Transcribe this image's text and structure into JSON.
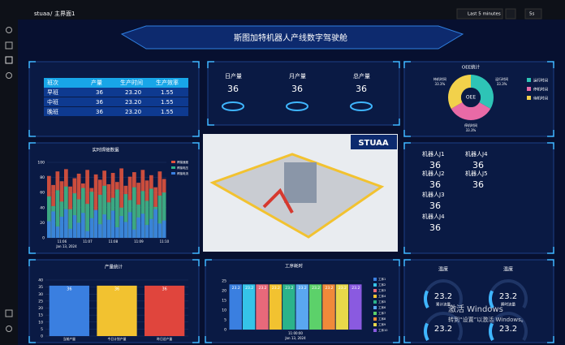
{
  "topbar": {
    "breadcrumb": [
      "stuaa",
      "主界面1"
    ],
    "separator": "/",
    "time_range": "Last 5 minutes",
    "refresh": "5s"
  },
  "title": "斯图加特机器人产线数字驾驶舱",
  "shift_table": {
    "header": [
      "班次",
      "产量",
      "生产时间",
      "生产效率"
    ],
    "rows": [
      [
        "早班",
        36,
        "23.20",
        "1.55"
      ],
      [
        "中班",
        36,
        "23.20",
        "1.55"
      ],
      [
        "晚班",
        36,
        "23.20",
        "1.55"
      ]
    ]
  },
  "production_stats": [
    {
      "label": "日产量",
      "value": 36
    },
    {
      "label": "月产量",
      "value": 36
    },
    {
      "label": "总产量",
      "value": 36
    }
  ],
  "oee": {
    "type": "pie",
    "title": "OEE统计",
    "center_label": "OEE",
    "categories": [
      "运行时间",
      "停机时间",
      "待机时间"
    ],
    "values": [
      33.3,
      33.3,
      33.3
    ],
    "value_labels": [
      "33.3%",
      "33.3%",
      "33.3%"
    ],
    "colors": [
      "#2ec4b6",
      "#e86aa6",
      "#f2d14b"
    ]
  },
  "weld_chart": {
    "type": "bar",
    "title": "实时焊接数据",
    "subtitle": "Jan 13, 2024",
    "categories": [
      null,
      null,
      null,
      "11:06",
      null,
      null,
      null,
      null,
      null,
      "11:07",
      null,
      null,
      null,
      null,
      null,
      "11:08",
      null,
      null,
      null,
      null,
      null,
      "11:09",
      null,
      null,
      null,
      null,
      null,
      "11:10"
    ],
    "ylim": [
      0,
      100
    ],
    "yticks": [
      0,
      20,
      40,
      60,
      80,
      100
    ],
    "series": [
      {
        "name": "焊接速度",
        "color": "#e0533d",
        "values": [
          82,
          70,
          88,
          75,
          91,
          68,
          79,
          85,
          72,
          90,
          66,
          84,
          77,
          89,
          71,
          86,
          74,
          92,
          69,
          81,
          87,
          73,
          90,
          76,
          83,
          67,
          88,
          78
        ]
      },
      {
        "name": "焊接电压",
        "color": "#2bb38a",
        "values": [
          55,
          42,
          63,
          48,
          68,
          38,
          59,
          51,
          66,
          45,
          61,
          36,
          57,
          69,
          47,
          53,
          64,
          40,
          58,
          50,
          67,
          44,
          62,
          49,
          65,
          41,
          56,
          60
        ]
      },
      {
        "name": "焊接电流",
        "color": "#3a7fe0",
        "values": [
          22,
          35,
          15,
          28,
          38,
          12,
          30,
          20,
          33,
          9,
          26,
          37,
          18,
          31,
          24,
          36,
          14,
          29,
          21,
          34,
          11,
          27,
          32,
          17,
          25,
          38,
          19,
          23
        ]
      }
    ]
  },
  "image_caption": "STUAA",
  "robots": [
    {
      "label": "机器人J1",
      "value": 36
    },
    {
      "label": "机器人J4",
      "value": 36
    },
    {
      "label": "机器人J2",
      "value": 36
    },
    {
      "label": "机器人J5",
      "value": 36
    },
    {
      "label": "机器人J3",
      "value": 36
    },
    {
      "label": "机器人J4",
      "value": 36
    }
  ],
  "output_chart": {
    "type": "bar",
    "title": "产量统计",
    "categories": [
      "当前产量",
      "今日计划产量",
      "昨日总产量"
    ],
    "values": [
      36,
      36,
      36
    ],
    "colors": [
      "#3a7fe0",
      "#f2c230",
      "#e0453d"
    ],
    "ylim": [
      0,
      40
    ],
    "yticks": [
      0,
      5,
      10,
      15,
      20,
      25,
      30,
      35,
      40
    ]
  },
  "process_chart": {
    "type": "bar",
    "title": "工序耗时",
    "x_tick": "11:00:00",
    "subtitle": "Jan 13, 2024",
    "ylim": [
      0,
      25
    ],
    "yticks": [
      0,
      5,
      10,
      15,
      20,
      25
    ],
    "series": [
      {
        "name": "工序1",
        "color": "#3a7fe0",
        "values": [
          23.2
        ]
      },
      {
        "name": "工序2",
        "color": "#35c4e8",
        "values": [
          23.2
        ]
      },
      {
        "name": "工序3",
        "color": "#e8697a",
        "values": [
          23.2
        ]
      },
      {
        "name": "工序4",
        "color": "#f2c230",
        "values": [
          23.2
        ]
      },
      {
        "name": "工序5",
        "color": "#2bb38a",
        "values": [
          23.2
        ]
      },
      {
        "name": "工序6",
        "color": "#5aa7f0",
        "values": [
          23.2
        ]
      },
      {
        "name": "工序7",
        "color": "#5cd16a",
        "values": [
          23.2
        ]
      },
      {
        "name": "工序8",
        "color": "#f08a3a",
        "values": [
          23.2
        ]
      },
      {
        "name": "工序9",
        "color": "#e8d84a",
        "values": [
          23.2
        ]
      },
      {
        "name": "工序10",
        "color": "#8a5ae0",
        "values": [
          23.2
        ]
      }
    ]
  },
  "gauges": [
    {
      "title": "温度",
      "value": 23.2,
      "label": "累计流量",
      "min": 0,
      "max": 100
    },
    {
      "title": "温度",
      "value": 23.2,
      "label": "瞬时流量",
      "min": 0,
      "max": 100
    },
    {
      "value": 23.2,
      "min": 0,
      "max": 100
    },
    {
      "value": 23.2,
      "min": 0,
      "max": 100
    }
  ],
  "watermark": {
    "line1": "激活 Windows",
    "line2": "转到“设置”以激活 Windows。"
  }
}
